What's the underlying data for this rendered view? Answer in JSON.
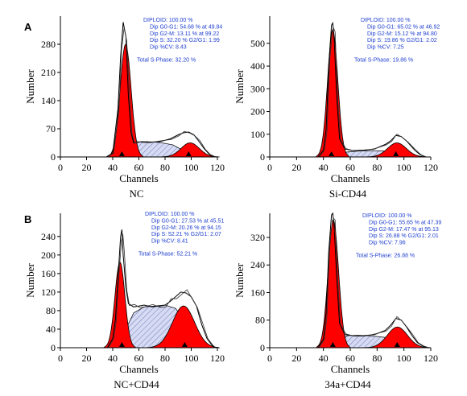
{
  "figure": {
    "panel_labels": [
      "A",
      "B"
    ]
  },
  "chart_data": [
    {
      "type": "area",
      "name": "NC",
      "title": "NC",
      "xlabel": "Channels",
      "ylabel": "Number",
      "xlim": [
        0,
        120
      ],
      "ylim": [
        0,
        350
      ],
      "xticks": [
        0,
        20,
        40,
        60,
        80,
        100,
        120
      ],
      "yticks": [
        0,
        70,
        140,
        210,
        280
      ],
      "markers": [
        47,
        98
      ],
      "series": [
        {
          "kind": "g1",
          "color": "#ff0000",
          "mu": 49.84,
          "sigma": 4.2,
          "amp": 280
        },
        {
          "kind": "g2",
          "color": "#ff0000",
          "mu": 99.22,
          "sigma": 7.0,
          "amp": 35
        },
        {
          "kind": "s",
          "color": "#c0c6ee",
          "x": [
            48,
            52,
            58,
            66,
            76,
            86,
            96,
            104
          ],
          "y": [
            0,
            25,
            36,
            38,
            36,
            30,
            12,
            0
          ]
        },
        {
          "kind": "envelope",
          "x": [
            35,
            40,
            44,
            46,
            48,
            50,
            52,
            54,
            56,
            58,
            62,
            68,
            76,
            84,
            90,
            94,
            98,
            102,
            106,
            110,
            114,
            118
          ],
          "y": [
            0,
            10,
            120,
            250,
            335,
            300,
            150,
            60,
            35,
            36,
            38,
            37,
            38,
            45,
            55,
            60,
            62,
            55,
            38,
            20,
            6,
            0
          ]
        }
      ],
      "stats": [
        "DIPLOID: 100.00  %",
        "Dip  G0-G1:  54.68  %  at  49.84",
        "Dip  G2-M:  13.11  %  at  99.22",
        "Dip  S:  32.20  %    G2/G1:  1.99",
        "Dip  %CV:  8.43",
        "Total  S-Phase:  32.20  %"
      ]
    },
    {
      "type": "area",
      "name": "Si-CD44",
      "title": "Si-CD44",
      "xlabel": "Channels",
      "ylabel": "Number",
      "xlim": [
        0,
        120
      ],
      "ylim": [
        0,
        620
      ],
      "xticks": [
        0,
        20,
        40,
        60,
        80,
        100,
        120
      ],
      "yticks": [
        0,
        100,
        200,
        300,
        400,
        500
      ],
      "markers": [
        46,
        94
      ],
      "series": [
        {
          "kind": "g1",
          "color": "#ff0000",
          "mu": 46.92,
          "sigma": 3.8,
          "amp": 560
        },
        {
          "kind": "g2",
          "color": "#ff0000",
          "mu": 94.8,
          "sigma": 7.0,
          "amp": 62
        },
        {
          "kind": "s",
          "color": "#c0c6ee",
          "x": [
            46,
            52,
            58,
            66,
            76,
            86,
            94,
            102
          ],
          "y": [
            0,
            15,
            22,
            26,
            28,
            26,
            12,
            0
          ]
        },
        {
          "kind": "envelope",
          "x": [
            36,
            40,
            42,
            44,
            46,
            47,
            48,
            50,
            52,
            56,
            62,
            70,
            78,
            86,
            90,
            94,
            98,
            102,
            108,
            112,
            116
          ],
          "y": [
            0,
            30,
            120,
            400,
            580,
            590,
            520,
            260,
            80,
            35,
            28,
            30,
            35,
            55,
            70,
            95,
            90,
            70,
            30,
            10,
            0
          ]
        }
      ],
      "stats": [
        "DIPLOID: 100.00  %",
        "Dip  G0-G1:  65.02  %  at  46.92",
        "Dip  G2-M:  15.12  %  at  94.80",
        "Dip  S:  19.86  %    G2/G1:  2.02",
        "Dip  %CV:  7.25",
        "Total  S-Phase:  19.86  %"
      ]
    },
    {
      "type": "area",
      "name": "NC+CD44",
      "title": "NC+CD44",
      "xlabel": "Channels",
      "ylabel": "Number",
      "xlim": [
        0,
        120
      ],
      "ylim": [
        0,
        290
      ],
      "xticks": [
        0,
        20,
        40,
        60,
        80,
        100,
        120
      ],
      "yticks": [
        0,
        40,
        80,
        120,
        160,
        200,
        240
      ],
      "markers": [
        47,
        95
      ],
      "series": [
        {
          "kind": "g1",
          "color": "#ff0000",
          "mu": 45.51,
          "sigma": 3.8,
          "amp": 185
        },
        {
          "kind": "g2",
          "color": "#ff0000",
          "mu": 94.15,
          "sigma": 8.5,
          "amp": 90
        },
        {
          "kind": "s",
          "color": "#c0c6ee",
          "x": [
            44,
            50,
            56,
            64,
            72,
            80,
            88,
            96,
            104
          ],
          "y": [
            0,
            40,
            75,
            88,
            90,
            92,
            85,
            55,
            0
          ]
        },
        {
          "kind": "envelope",
          "x": [
            36,
            40,
            42,
            44,
            46,
            47,
            48,
            50,
            52,
            56,
            60,
            64,
            70,
            76,
            80,
            84,
            88,
            92,
            96,
            100,
            104,
            108,
            112,
            116,
            118
          ],
          "y": [
            0,
            20,
            60,
            150,
            240,
            255,
            200,
            130,
            95,
            88,
            90,
            92,
            88,
            90,
            92,
            100,
            110,
            120,
            118,
            110,
            90,
            50,
            20,
            5,
            0
          ]
        }
      ],
      "stats": [
        "DIPLOID: 100.00  %",
        "Dip  G0-G1:  27.53  %  at  45.51",
        "Dip  G2-M:  20.26  %  at  94.15",
        "Dip  S:  52.21  %    G2/G1:  2.07",
        "Dip  %CV:  8.41",
        "Total  S-Phase:  52.21  %"
      ]
    },
    {
      "type": "area",
      "name": "34a+CD44",
      "title": "34a+CD44",
      "xlabel": "Channels",
      "ylabel": "Number",
      "xlim": [
        0,
        120
      ],
      "ylim": [
        0,
        390
      ],
      "xticks": [
        0,
        20,
        40,
        60,
        80,
        100,
        120
      ],
      "yticks": [
        0,
        80,
        160,
        240,
        320
      ],
      "markers": [
        47,
        95
      ],
      "series": [
        {
          "kind": "g1",
          "color": "#ff0000",
          "mu": 47.39,
          "sigma": 3.9,
          "amp": 370
        },
        {
          "kind": "g2",
          "color": "#ff0000",
          "mu": 95.13,
          "sigma": 7.5,
          "amp": 60
        },
        {
          "kind": "s",
          "color": "#c0c6ee",
          "x": [
            46,
            52,
            58,
            66,
            76,
            86,
            96,
            104
          ],
          "y": [
            0,
            25,
            35,
            36,
            34,
            30,
            14,
            0
          ]
        },
        {
          "kind": "envelope",
          "x": [
            36,
            40,
            42,
            44,
            46,
            47,
            48,
            50,
            52,
            56,
            62,
            70,
            78,
            86,
            90,
            94,
            98,
            102,
            106,
            110,
            114,
            118
          ],
          "y": [
            0,
            25,
            100,
            280,
            385,
            390,
            350,
            200,
            70,
            38,
            35,
            35,
            38,
            50,
            65,
            85,
            80,
            60,
            35,
            15,
            5,
            0
          ]
        }
      ],
      "stats": [
        "DIPLOID: 100.00  %",
        "Dip  G0-G1:  55.65  %  at  47.39",
        "Dip  G2-M:  17.47  %  at  95.13",
        "Dip  S:  26.88  %    G2/G1:  2.01",
        "Dip  %CV:  7.96",
        "Total  S-Phase:  26.88  %"
      ]
    }
  ]
}
